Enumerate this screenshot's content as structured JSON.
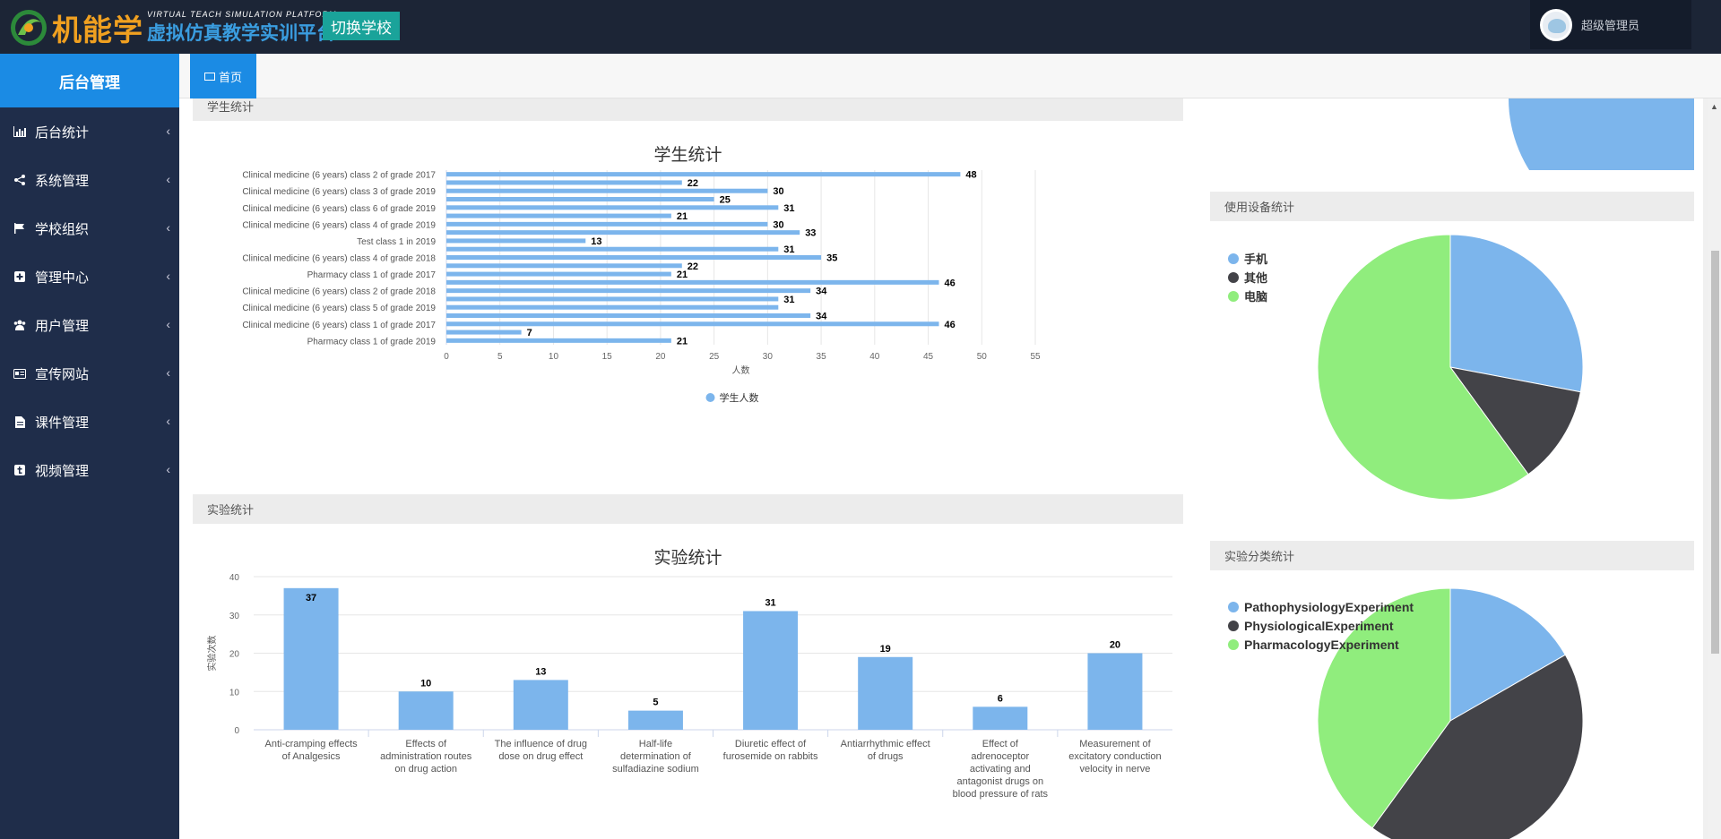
{
  "header": {
    "logo_main": "机能学",
    "logo_en": "VIRTUAL TEACH SIMULATION PLATFORM",
    "logo_cn": "虚拟仿真教学实训平台",
    "switch_school": "切换学校",
    "user_name": "超级管理员"
  },
  "sidebar": {
    "title": "后台管理",
    "items": [
      {
        "label": "后台统计",
        "icon": "bar-chart-icon"
      },
      {
        "label": "系统管理",
        "icon": "share-icon"
      },
      {
        "label": "学校组织",
        "icon": "flag-icon"
      },
      {
        "label": "管理中心",
        "icon": "plus-square-icon"
      },
      {
        "label": "用户管理",
        "icon": "users-icon"
      },
      {
        "label": "宣传网站",
        "icon": "id-card-icon"
      },
      {
        "label": "课件管理",
        "icon": "file-icon"
      },
      {
        "label": "视频管理",
        "icon": "tumblr-square-icon"
      }
    ]
  },
  "tabs": [
    {
      "label": "首页",
      "icon": "desktop-icon"
    }
  ],
  "panels": {
    "student_stats": "学生统计",
    "experiment_stats": "实验统计",
    "device_stats": "使用设备统计",
    "category_stats": "实验分类统计"
  },
  "colors": {
    "blue": "#7cb5ec",
    "dark": "#434348",
    "green": "#90ed7d",
    "accent": "#1b8be4",
    "teal": "#1aa39a"
  },
  "chart_data": [
    {
      "type": "bar",
      "orientation": "horizontal",
      "title": "学生统计",
      "xlabel": "人数",
      "xlim": [
        0,
        55
      ],
      "xticks": [
        0,
        5,
        10,
        15,
        20,
        25,
        30,
        35,
        40,
        45,
        50,
        55
      ],
      "categories": [
        "Clinical medicine (6 years) class 2 of grade 2017",
        "",
        "Clinical medicine (6 years) class 3 of grade 2019",
        "",
        "Clinical medicine (6 years) class 6 of grade 2019",
        "",
        "Clinical medicine (6 years) class 4 of grade 2019",
        "",
        "Test class 1 in 2019",
        "",
        "Clinical medicine (6 years) class 4 of grade 2018",
        "",
        "Pharmacy class 1 of grade 2017",
        "",
        "Clinical medicine (6 years) class 2 of grade 2018",
        "",
        "Clinical medicine (6 years) class 5 of grade 2019",
        "",
        "Clinical medicine (6 years) class 1 of grade 2017",
        "",
        "Pharmacy class 1 of grade 2019"
      ],
      "values": [
        48,
        22,
        30,
        25,
        31,
        21,
        30,
        33,
        13,
        31,
        35,
        22,
        21,
        46,
        34,
        31,
        31,
        34,
        46,
        7,
        21
      ],
      "data_labels": [
        "48",
        "22",
        "30",
        "25",
        "31",
        "21",
        "30",
        "33",
        "13",
        "31",
        "35",
        "22",
        "21",
        "46",
        "34",
        "31",
        "",
        "34",
        "46",
        "7",
        "21"
      ],
      "series": [
        {
          "name": "学生人数"
        }
      ],
      "legend": "bottom-center",
      "grid": true
    },
    {
      "type": "bar",
      "title": "实验统计",
      "ylabel": "实验次数",
      "ylim": [
        0,
        40
      ],
      "yticks": [
        0,
        10,
        20,
        30,
        40
      ],
      "categories": [
        [
          "Anti-cramping effects",
          "of Analgesics"
        ],
        [
          "Effects of",
          "administration routes",
          "on drug action"
        ],
        [
          "The influence of drug",
          "dose on drug effect"
        ],
        [
          "Half-life",
          "determination of",
          "sulfadiazine sodium"
        ],
        [
          "Diuretic effect of",
          "furosemide on rabbits"
        ],
        [
          "Antiarrhythmic effect",
          "of drugs"
        ],
        [
          "Effect of",
          "adrenoceptor",
          "activating and",
          "antagonist drugs on",
          "blood pressure of rats"
        ],
        [
          "Measurement of",
          "excitatory conduction",
          "velocity in nerve"
        ]
      ],
      "values": [
        37,
        10,
        13,
        5,
        31,
        19,
        6,
        20
      ],
      "grid": true
    },
    {
      "type": "pie",
      "title": "",
      "labels": [
        "手机",
        "其他",
        "电脑"
      ],
      "values": [
        28,
        12,
        60
      ],
      "colors": [
        "#7cb5ec",
        "#434348",
        "#90ed7d"
      ],
      "legend": "top-left"
    },
    {
      "type": "pie",
      "title": "",
      "labels": [
        "PathophysiologyExperiment",
        "PhysiologicalExperiment",
        "PharmacologyExperiment"
      ],
      "values": [
        16.7,
        43.3,
        40.0
      ],
      "colors": [
        "#7cb5ec",
        "#434348",
        "#90ed7d"
      ],
      "legend": "top-left"
    }
  ]
}
